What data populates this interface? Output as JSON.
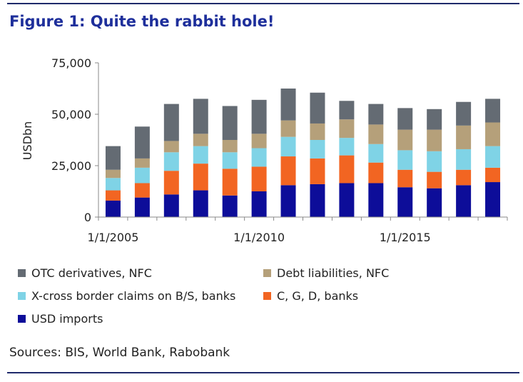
{
  "figure": {
    "title": "Figure 1: Quite the rabbit hole!",
    "sources": "Sources: BIS, World Bank, Rabobank"
  },
  "chart_data": {
    "type": "bar",
    "stacked": true,
    "title": "Figure 1: Quite the rabbit hole!",
    "xlabel": "",
    "ylabel": "USDbn",
    "ylim": [
      0,
      75000
    ],
    "yticks": [
      0,
      25000,
      50000,
      75000
    ],
    "ytick_labels": [
      "0",
      "25,000",
      "50,000",
      "75,000"
    ],
    "xtick_labels": [
      {
        "label": "1/1/2005",
        "at_index": 0
      },
      {
        "label": "1/1/2010",
        "at_index": 5
      },
      {
        "label": "1/1/2015",
        "at_index": 10
      }
    ],
    "categories": [
      "2005",
      "2006",
      "2007",
      "2008",
      "2009",
      "2010",
      "2011",
      "2012",
      "2013",
      "2014",
      "2015",
      "2016",
      "2017",
      "2018"
    ],
    "series": [
      {
        "name": "USD imports",
        "color": "#0d0d99",
        "values": [
          8000,
          9500,
          11000,
          13000,
          10500,
          12500,
          15500,
          16000,
          16500,
          16500,
          14500,
          14000,
          15500,
          17000
        ]
      },
      {
        "name": "C, G, D, banks",
        "color": "#f26522",
        "values": [
          5000,
          7000,
          11500,
          13000,
          13000,
          12000,
          14000,
          12500,
          13500,
          10000,
          8500,
          8000,
          7500,
          7000
        ]
      },
      {
        "name": "X-cross border claims on B/S, banks",
        "color": "#7fd3e6",
        "values": [
          6000,
          7500,
          9000,
          8500,
          8000,
          9000,
          9500,
          9000,
          8500,
          9000,
          9500,
          10000,
          10000,
          10500
        ]
      },
      {
        "name": "Debt liabilities, NFC",
        "color": "#b5a07a",
        "values": [
          4000,
          4500,
          5500,
          6000,
          6000,
          7000,
          8000,
          8000,
          9000,
          9500,
          10000,
          10500,
          11500,
          11500
        ]
      },
      {
        "name": "OTC derivatives, NFC",
        "color": "#646b73",
        "values": [
          11500,
          15500,
          18000,
          17000,
          16500,
          16500,
          15500,
          15000,
          9000,
          10000,
          10500,
          10000,
          11500,
          11500
        ]
      }
    ],
    "legend": [
      {
        "name": "OTC derivatives, NFC",
        "color": "#646b73"
      },
      {
        "name": "Debt liabilities, NFC",
        "color": "#b5a07a"
      },
      {
        "name": "X-cross border claims on B/S, banks",
        "color": "#7fd3e6"
      },
      {
        "name": "C, G, D, banks",
        "color": "#f26522"
      },
      {
        "name": "USD imports",
        "color": "#0d0d99"
      }
    ],
    "grid": false
  }
}
